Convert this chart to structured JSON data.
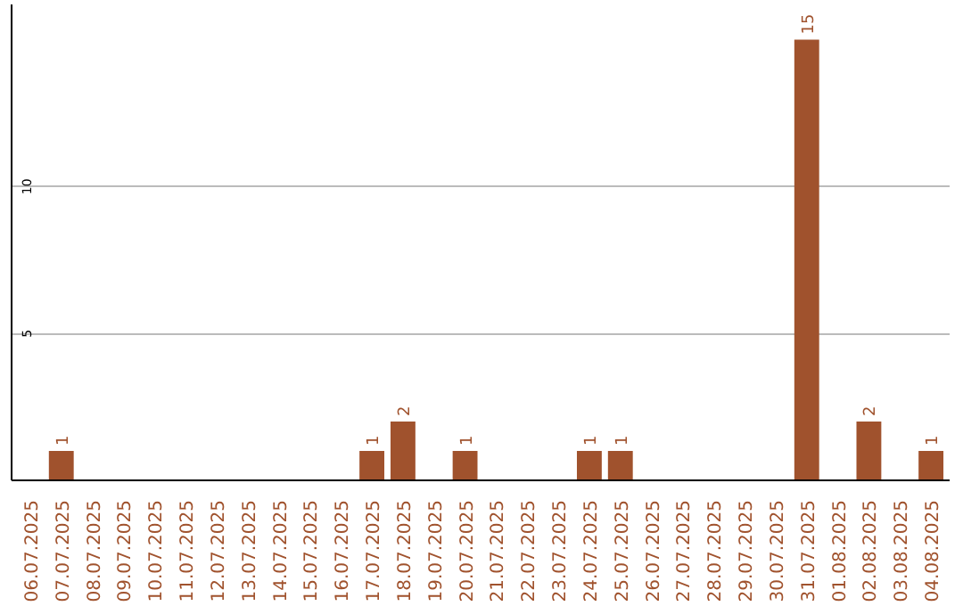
{
  "chart_data": {
    "type": "bar",
    "categories": [
      "06.07.2025",
      "07.07.2025",
      "08.07.2025",
      "09.07.2025",
      "10.07.2025",
      "11.07.2025",
      "12.07.2025",
      "13.07.2025",
      "14.07.2025",
      "15.07.2025",
      "16.07.2025",
      "17.07.2025",
      "18.07.2025",
      "19.07.2025",
      "20.07.2025",
      "21.07.2025",
      "22.07.2025",
      "23.07.2025",
      "24.07.2025",
      "25.07.2025",
      "26.07.2025",
      "27.07.2025",
      "28.07.2025",
      "29.07.2025",
      "30.07.2025",
      "31.07.2025",
      "01.08.2025",
      "02.08.2025",
      "03.08.2025",
      "04.08.2025"
    ],
    "values": [
      0,
      1,
      0,
      0,
      0,
      0,
      0,
      0,
      0,
      0,
      0,
      1,
      2,
      0,
      1,
      0,
      0,
      0,
      1,
      1,
      0,
      0,
      0,
      0,
      0,
      15,
      0,
      2,
      0,
      1
    ],
    "color": "#a0522d",
    "value_labels": [
      null,
      "1",
      null,
      null,
      null,
      null,
      null,
      null,
      null,
      null,
      null,
      "1",
      "2",
      null,
      "1",
      null,
      null,
      null,
      "1",
      "1",
      null,
      null,
      null,
      null,
      null,
      "15",
      null,
      "2",
      null,
      "1"
    ],
    "ylim": [
      0,
      16.2
    ],
    "yticks": [
      5,
      10
    ],
    "grid": "y"
  }
}
